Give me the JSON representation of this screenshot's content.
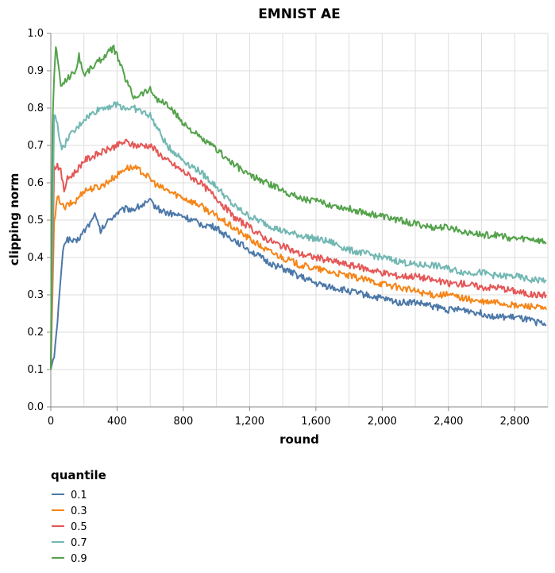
{
  "chart_data": {
    "type": "line",
    "title": "EMNIST AE",
    "xlabel": "round",
    "ylabel": "clipping norm",
    "xlim": [
      0,
      3000
    ],
    "ylim": [
      0,
      1.0
    ],
    "x_ticks": [
      0,
      400,
      800,
      1200,
      1600,
      2000,
      2400,
      2800
    ],
    "x_tick_labels": [
      "0",
      "400",
      "800",
      "1,200",
      "1,600",
      "2,000",
      "2,400",
      "2,800"
    ],
    "y_ticks": [
      0.0,
      0.1,
      0.2,
      0.3,
      0.4,
      0.5,
      0.6,
      0.7,
      0.8,
      0.9,
      1.0
    ],
    "y_tick_labels": [
      "0.0",
      "0.1",
      "0.2",
      "0.3",
      "0.4",
      "0.5",
      "0.6",
      "0.7",
      "0.8",
      "0.9",
      "1.0"
    ],
    "grid": true,
    "legend": {
      "title": "quantile",
      "position": "bottom-left"
    },
    "series": [
      {
        "name": "0.1",
        "color": "#4c78a8",
        "x": [
          0,
          20,
          40,
          60,
          80,
          100,
          150,
          200,
          250,
          260,
          300,
          350,
          400,
          450,
          500,
          550,
          600,
          650,
          700,
          800,
          900,
          1000,
          1050,
          1100,
          1200,
          1300,
          1400,
          1500,
          1600,
          1700,
          1800,
          1900,
          2000,
          2100,
          2200,
          2300,
          2400,
          2500,
          2600,
          2700,
          2800,
          2900,
          2990
        ],
        "y": [
          0.1,
          0.14,
          0.22,
          0.35,
          0.44,
          0.45,
          0.44,
          0.47,
          0.5,
          0.52,
          0.47,
          0.5,
          0.52,
          0.53,
          0.53,
          0.54,
          0.55,
          0.53,
          0.52,
          0.51,
          0.49,
          0.48,
          0.46,
          0.45,
          0.42,
          0.39,
          0.37,
          0.35,
          0.33,
          0.32,
          0.31,
          0.3,
          0.29,
          0.28,
          0.28,
          0.27,
          0.26,
          0.26,
          0.25,
          0.24,
          0.24,
          0.23,
          0.22
        ]
      },
      {
        "name": "0.3",
        "color": "#f58518",
        "x": [
          0,
          20,
          40,
          60,
          80,
          100,
          150,
          200,
          300,
          400,
          450,
          500,
          550,
          600,
          650,
          700,
          800,
          900,
          1000,
          1100,
          1200,
          1300,
          1400,
          1500,
          1600,
          1700,
          1800,
          1900,
          2000,
          2100,
          2200,
          2300,
          2400,
          2500,
          2600,
          2700,
          2800,
          2900,
          2990
        ],
        "y": [
          0.1,
          0.49,
          0.56,
          0.55,
          0.53,
          0.54,
          0.55,
          0.58,
          0.59,
          0.62,
          0.64,
          0.64,
          0.63,
          0.61,
          0.59,
          0.58,
          0.56,
          0.54,
          0.51,
          0.48,
          0.45,
          0.42,
          0.4,
          0.38,
          0.37,
          0.36,
          0.35,
          0.34,
          0.33,
          0.32,
          0.31,
          0.3,
          0.3,
          0.29,
          0.28,
          0.28,
          0.27,
          0.27,
          0.26
        ]
      },
      {
        "name": "0.5",
        "color": "#e45756",
        "x": [
          0,
          20,
          40,
          60,
          80,
          100,
          150,
          200,
          300,
          400,
          450,
          500,
          550,
          600,
          650,
          700,
          800,
          900,
          1000,
          1100,
          1200,
          1300,
          1400,
          1500,
          1600,
          1700,
          1800,
          1900,
          2000,
          2100,
          2200,
          2300,
          2400,
          2500,
          2600,
          2700,
          2800,
          2900,
          2990
        ],
        "y": [
          0.1,
          0.64,
          0.65,
          0.63,
          0.58,
          0.61,
          0.63,
          0.66,
          0.68,
          0.7,
          0.71,
          0.7,
          0.7,
          0.7,
          0.68,
          0.66,
          0.63,
          0.6,
          0.56,
          0.51,
          0.48,
          0.45,
          0.43,
          0.41,
          0.4,
          0.39,
          0.38,
          0.37,
          0.36,
          0.35,
          0.35,
          0.34,
          0.33,
          0.33,
          0.32,
          0.32,
          0.31,
          0.3,
          0.3
        ]
      },
      {
        "name": "0.7",
        "color": "#72b7b2",
        "x": [
          0,
          20,
          40,
          60,
          80,
          100,
          150,
          200,
          300,
          400,
          450,
          500,
          550,
          600,
          650,
          700,
          800,
          900,
          1000,
          1100,
          1200,
          1300,
          1400,
          1500,
          1600,
          1700,
          1800,
          1900,
          2000,
          2100,
          2200,
          2300,
          2400,
          2500,
          2600,
          2700,
          2800,
          2900,
          2990
        ],
        "y": [
          0.1,
          0.78,
          0.76,
          0.7,
          0.69,
          0.72,
          0.74,
          0.77,
          0.8,
          0.81,
          0.8,
          0.8,
          0.79,
          0.78,
          0.74,
          0.7,
          0.66,
          0.63,
          0.59,
          0.54,
          0.51,
          0.49,
          0.47,
          0.46,
          0.45,
          0.44,
          0.42,
          0.41,
          0.4,
          0.39,
          0.38,
          0.38,
          0.37,
          0.36,
          0.36,
          0.35,
          0.35,
          0.34,
          0.34
        ]
      },
      {
        "name": "0.9",
        "color": "#54a24b",
        "x": [
          0,
          10,
          20,
          30,
          40,
          60,
          80,
          100,
          150,
          170,
          200,
          250,
          300,
          350,
          380,
          400,
          450,
          480,
          500,
          550,
          600,
          650,
          700,
          800,
          900,
          1000,
          1100,
          1200,
          1300,
          1400,
          1500,
          1600,
          1700,
          1800,
          1900,
          2000,
          2100,
          2200,
          2300,
          2400,
          2500,
          2600,
          2700,
          2800,
          2900,
          2990
        ],
        "y": [
          0.1,
          0.75,
          0.88,
          0.97,
          0.93,
          0.86,
          0.87,
          0.88,
          0.9,
          0.94,
          0.89,
          0.91,
          0.93,
          0.95,
          0.96,
          0.94,
          0.88,
          0.85,
          0.83,
          0.84,
          0.85,
          0.82,
          0.81,
          0.76,
          0.72,
          0.69,
          0.65,
          0.62,
          0.6,
          0.58,
          0.56,
          0.55,
          0.54,
          0.53,
          0.52,
          0.51,
          0.5,
          0.49,
          0.48,
          0.48,
          0.47,
          0.46,
          0.46,
          0.45,
          0.45,
          0.44
        ]
      }
    ]
  }
}
